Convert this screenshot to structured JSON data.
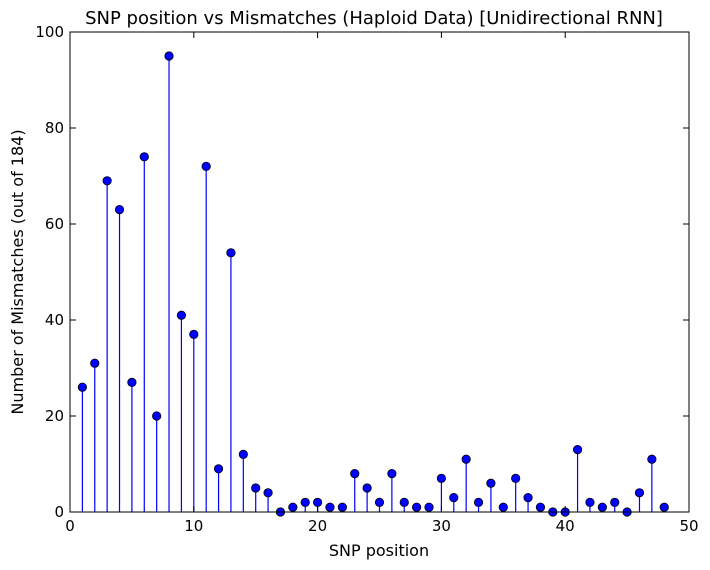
{
  "chart_data": {
    "type": "stem",
    "title": "SNP position vs Mismatches (Haploid Data) [Unidirectional RNN]",
    "xlabel": "SNP position",
    "ylabel": "Number of Mismatches (out of 184)",
    "xlim": [
      0,
      50
    ],
    "ylim": [
      0,
      100
    ],
    "xticks": [
      0,
      10,
      20,
      30,
      40,
      50
    ],
    "yticks": [
      0,
      20,
      40,
      60,
      80,
      100
    ],
    "grid": false,
    "color": "#0000ff",
    "x": [
      1,
      2,
      3,
      4,
      5,
      6,
      7,
      8,
      9,
      10,
      11,
      12,
      13,
      14,
      15,
      16,
      17,
      18,
      19,
      20,
      21,
      22,
      23,
      24,
      25,
      26,
      27,
      28,
      29,
      30,
      31,
      32,
      33,
      34,
      35,
      36,
      37,
      38,
      39,
      40,
      41,
      42,
      43,
      44,
      45,
      46,
      47,
      48
    ],
    "y": [
      26,
      31,
      69,
      63,
      27,
      74,
      20,
      95,
      41,
      37,
      72,
      9,
      54,
      12,
      5,
      4,
      0,
      1,
      2,
      2,
      1,
      1,
      8,
      5,
      2,
      8,
      2,
      1,
      1,
      7,
      3,
      11,
      2,
      6,
      1,
      7,
      3,
      1,
      0,
      0,
      13,
      2,
      1,
      2,
      0,
      4,
      11,
      1
    ]
  }
}
